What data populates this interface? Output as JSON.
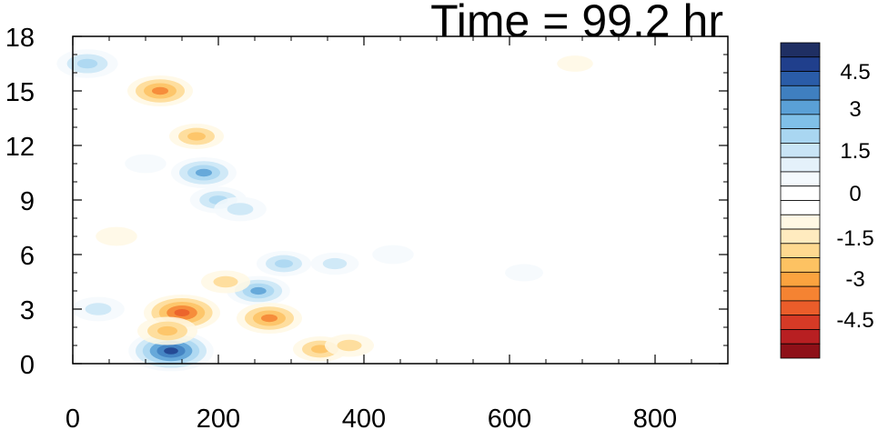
{
  "chart_data": {
    "type": "heatmap",
    "title": "Time = 99.2 hr",
    "xlim": [
      0,
      900
    ],
    "ylim": [
      0,
      18
    ],
    "x_ticks": [
      "0",
      "200",
      "400",
      "600",
      "800"
    ],
    "y_ticks": [
      "0",
      "3",
      "6",
      "9",
      "12",
      "15",
      "18"
    ],
    "colorbar": {
      "range": [
        -5.25,
        5.25
      ],
      "labels": [
        "4.5",
        "3",
        "1.5",
        "0",
        "-1.5",
        "-3",
        "-4.5"
      ],
      "colors": [
        "#1f2f63",
        "#203f8c",
        "#2a5ca8",
        "#3f7fc0",
        "#5aa0d6",
        "#80c0e8",
        "#a9d6f1",
        "#c9e5f6",
        "#e4f1fa",
        "#f4f9fd",
        "#ffffff",
        "#ffffff",
        "#fff8e4",
        "#ffebbf",
        "#fed990",
        "#fdc262",
        "#fba33f",
        "#f58332",
        "#ea5d2a",
        "#d63a26",
        "#b81f22",
        "#8e1018"
      ]
    },
    "features": [
      {
        "x": 135,
        "y": 0.7,
        "value": 4.8
      },
      {
        "x": 180,
        "y": 10.5,
        "value": 3.0
      },
      {
        "x": 200,
        "y": 9.0,
        "value": 2.2
      },
      {
        "x": 230,
        "y": 8.5,
        "value": 1.8
      },
      {
        "x": 255,
        "y": 4.0,
        "value": 2.8
      },
      {
        "x": 290,
        "y": 5.5,
        "value": 2.0
      },
      {
        "x": 150,
        "y": 2.8,
        "value": -4.0
      },
      {
        "x": 130,
        "y": 1.8,
        "value": -2.5
      },
      {
        "x": 270,
        "y": 2.5,
        "value": -3.0
      },
      {
        "x": 210,
        "y": 4.5,
        "value": -1.5
      },
      {
        "x": 170,
        "y": 12.5,
        "value": -2.0
      },
      {
        "x": 120,
        "y": 15.0,
        "value": -3.0
      },
      {
        "x": 20,
        "y": 16.5,
        "value": 2.6
      },
      {
        "x": 35,
        "y": 3.0,
        "value": 1.8
      },
      {
        "x": 360,
        "y": 5.5,
        "value": 1.4
      },
      {
        "x": 440,
        "y": 6.0,
        "value": 0.8
      },
      {
        "x": 620,
        "y": 5.0,
        "value": 0.5
      },
      {
        "x": 340,
        "y": 0.8,
        "value": -2.0
      },
      {
        "x": 380,
        "y": 1.0,
        "value": -1.5
      },
      {
        "x": 60,
        "y": 7.0,
        "value": -0.8
      },
      {
        "x": 690,
        "y": 16.5,
        "value": -0.3
      },
      {
        "x": 100,
        "y": 11.0,
        "value": 0.8
      }
    ]
  }
}
